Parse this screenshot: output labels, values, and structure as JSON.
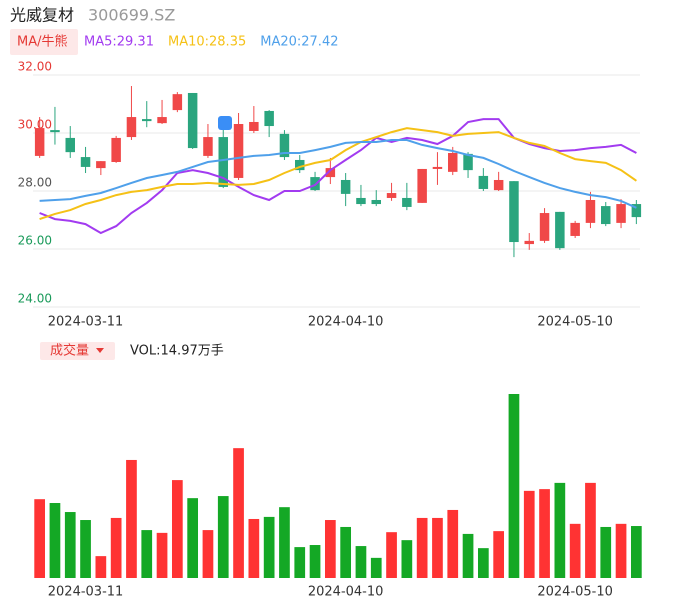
{
  "header": {
    "name": "光威复材",
    "code": "300699.SZ",
    "ma_button": "MA/牛熊",
    "volume_button": "成交量",
    "volume_label": "VOL:14.97万手"
  },
  "chart_data": [
    {
      "type": "candlestick",
      "categories": [
        null,
        null,
        null,
        "2024-03-11",
        null,
        null,
        null,
        null,
        null,
        null,
        null,
        null,
        null,
        null,
        null,
        null,
        null,
        null,
        null,
        null,
        "2024-04-10",
        null,
        null,
        null,
        null,
        null,
        null,
        null,
        null,
        null,
        null,
        null,
        null,
        null,
        null,
        "2024-05-10",
        null,
        null,
        null,
        null
      ],
      "open": [
        29.21,
        30.1,
        29.83,
        29.17,
        28.79,
        29.0,
        29.86,
        30.48,
        30.34,
        30.79,
        31.38,
        29.21,
        29.86,
        28.45,
        30.07,
        30.76,
        29.97,
        29.07,
        28.48,
        28.48,
        28.38,
        27.76,
        27.69,
        27.76,
        27.76,
        27.59,
        28.76,
        28.66,
        29.28,
        28.52,
        28.03,
        28.34,
        26.17,
        26.28,
        27.28,
        26.45,
        26.9,
        27.48,
        26.9,
        27.55
      ],
      "high": [
        30.55,
        30.9,
        30.24,
        29.52,
        29.03,
        29.9,
        31.62,
        31.1,
        31.14,
        31.41,
        31.38,
        30.31,
        30.3,
        30.69,
        30.93,
        30.79,
        30.1,
        29.24,
        28.66,
        29.14,
        28.62,
        28.21,
        28.03,
        28.28,
        28.28,
        28.76,
        29.34,
        29.52,
        29.34,
        28.79,
        28.66,
        28.34,
        26.55,
        27.41,
        27.28,
        26.97,
        27.97,
        27.62,
        27.72,
        27.69
      ],
      "low": [
        29.14,
        29.6,
        29.14,
        28.62,
        28.55,
        28.97,
        29.76,
        30.2,
        30.31,
        30.72,
        29.45,
        29.14,
        28.1,
        28.38,
        30.0,
        29.86,
        29.07,
        28.62,
        28.0,
        28.24,
        27.48,
        27.48,
        27.48,
        27.66,
        27.34,
        27.59,
        28.21,
        28.55,
        28.45,
        28.0,
        28.0,
        25.72,
        25.97,
        26.21,
        25.97,
        26.38,
        26.72,
        26.79,
        26.72,
        26.86
      ],
      "close": [
        30.17,
        30.03,
        29.34,
        28.83,
        29.03,
        29.83,
        30.55,
        30.41,
        30.55,
        31.34,
        29.48,
        29.86,
        28.14,
        30.31,
        30.38,
        30.24,
        29.17,
        28.72,
        28.03,
        28.79,
        27.9,
        27.55,
        27.55,
        27.93,
        27.45,
        28.76,
        28.83,
        29.31,
        28.72,
        28.07,
        28.38,
        26.24,
        26.28,
        27.24,
        26.03,
        26.9,
        27.69,
        26.86,
        27.55,
        27.1
      ],
      "up_color": "#f04848",
      "down_color": "#2aa57e",
      "series": [
        {
          "name": "MA5:29.31",
          "color": "#a23bf0",
          "values": [
            27.24,
            27.03,
            26.97,
            26.86,
            26.55,
            26.79,
            27.24,
            27.59,
            28.03,
            28.62,
            28.72,
            28.62,
            28.45,
            28.14,
            27.86,
            27.69,
            28.0,
            28.0,
            28.21,
            28.72,
            29.07,
            29.41,
            29.83,
            29.69,
            29.83,
            29.76,
            29.62,
            29.9,
            30.38,
            30.48,
            30.48,
            29.83,
            29.62,
            29.48,
            29.38,
            29.41,
            29.48,
            29.52,
            29.59,
            29.31
          ]
        },
        {
          "name": "MA10:28.35",
          "color": "#f5c116",
          "values": [
            27.03,
            27.21,
            27.34,
            27.55,
            27.69,
            27.86,
            27.97,
            28.03,
            28.14,
            28.24,
            28.24,
            28.28,
            28.24,
            28.21,
            28.24,
            28.38,
            28.62,
            28.83,
            28.97,
            29.07,
            29.41,
            29.69,
            29.86,
            30.03,
            30.17,
            30.1,
            30.03,
            29.9,
            29.97,
            30.0,
            30.03,
            29.83,
            29.66,
            29.55,
            29.31,
            29.1,
            29.03,
            28.97,
            28.72,
            28.35
          ]
        },
        {
          "name": "MA20:27.42",
          "color": "#4fa0ea",
          "values": [
            27.66,
            27.69,
            27.72,
            27.83,
            27.93,
            28.1,
            28.28,
            28.45,
            28.55,
            28.66,
            28.83,
            29.0,
            29.07,
            29.14,
            29.21,
            29.24,
            29.31,
            29.31,
            29.41,
            29.52,
            29.66,
            29.69,
            29.69,
            29.76,
            29.76,
            29.59,
            29.48,
            29.38,
            29.24,
            29.14,
            28.93,
            28.69,
            28.48,
            28.28,
            28.1,
            27.97,
            27.86,
            27.79,
            27.66,
            27.42
          ]
        }
      ],
      "ylim": [
        24,
        32
      ],
      "yticks": [
        {
          "value": 32,
          "label": "32.00"
        },
        {
          "value": 30,
          "label": "30.00"
        },
        {
          "value": 28,
          "label": "28.00"
        },
        {
          "value": 26,
          "label": "26.00"
        },
        {
          "value": 24,
          "label": "24.00"
        }
      ],
      "grid": true
    },
    {
      "type": "volume",
      "categories": [
        null,
        null,
        null,
        "2024-03-11",
        null,
        null,
        null,
        null,
        null,
        null,
        null,
        null,
        null,
        null,
        null,
        null,
        null,
        null,
        null,
        null,
        "2024-04-10",
        null,
        null,
        null,
        null,
        null,
        null,
        null,
        null,
        null,
        null,
        null,
        null,
        null,
        null,
        "2024-05-10",
        null,
        null,
        null,
        null
      ],
      "values": [
        22.7,
        21.6,
        19.0,
        16.7,
        6.3,
        17.3,
        34.0,
        13.8,
        13.0,
        28.2,
        23.0,
        13.8,
        23.6,
        37.4,
        17.0,
        17.6,
        20.4,
        8.9,
        9.5,
        16.7,
        14.7,
        9.2,
        5.8,
        13.2,
        10.9,
        17.3,
        17.3,
        19.6,
        12.7,
        8.6,
        13.5,
        53.0,
        25.1,
        25.6,
        27.4,
        15.6,
        27.4,
        14.7,
        15.6,
        14.97
      ],
      "up_color": "#ff3333",
      "down_color": "#14a825"
    }
  ]
}
